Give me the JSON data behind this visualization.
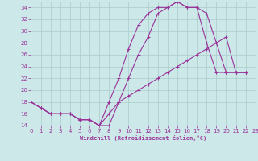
{
  "bg_color": "#cce8e8",
  "line_color": "#993399",
  "grid_color": "#aacccc",
  "xlim": [
    0,
    23
  ],
  "ylim": [
    14,
    35
  ],
  "yticks": [
    14,
    16,
    18,
    20,
    22,
    24,
    26,
    28,
    30,
    32,
    34
  ],
  "xticks": [
    0,
    1,
    2,
    3,
    4,
    5,
    6,
    7,
    8,
    9,
    10,
    11,
    12,
    13,
    14,
    15,
    16,
    17,
    18,
    19,
    20,
    21,
    22,
    23
  ],
  "line1_x": [
    0,
    1,
    2,
    3,
    4,
    5,
    6,
    7,
    8,
    9,
    10,
    11,
    12,
    13,
    14,
    15,
    16,
    17,
    18,
    19,
    20,
    21,
    22
  ],
  "line1_y": [
    18,
    17,
    16,
    16,
    16,
    15,
    15,
    14,
    18,
    22,
    27,
    31,
    33,
    34,
    34,
    35,
    34,
    34,
    28,
    23,
    23,
    23,
    23
  ],
  "line2_x": [
    0,
    1,
    2,
    3,
    4,
    5,
    6,
    7,
    8,
    9,
    10,
    11,
    12,
    13,
    14,
    15,
    16,
    17,
    18,
    19,
    20,
    21,
    22
  ],
  "line2_y": [
    18,
    17,
    16,
    16,
    16,
    15,
    15,
    14,
    14,
    18,
    22,
    26,
    29,
    33,
    34,
    35,
    34,
    34,
    33,
    28,
    23,
    23,
    23
  ],
  "line3_x": [
    0,
    1,
    2,
    3,
    4,
    5,
    6,
    7,
    8,
    9,
    10,
    11,
    12,
    13,
    14,
    15,
    16,
    17,
    18,
    19,
    20,
    21,
    22
  ],
  "line3_y": [
    18,
    17,
    16,
    16,
    16,
    15,
    15,
    14,
    16,
    18,
    19,
    20,
    21,
    22,
    23,
    24,
    25,
    26,
    27,
    28,
    29,
    23,
    23
  ],
  "xlabel": "Windchill (Refroidissement éolien,°C)"
}
